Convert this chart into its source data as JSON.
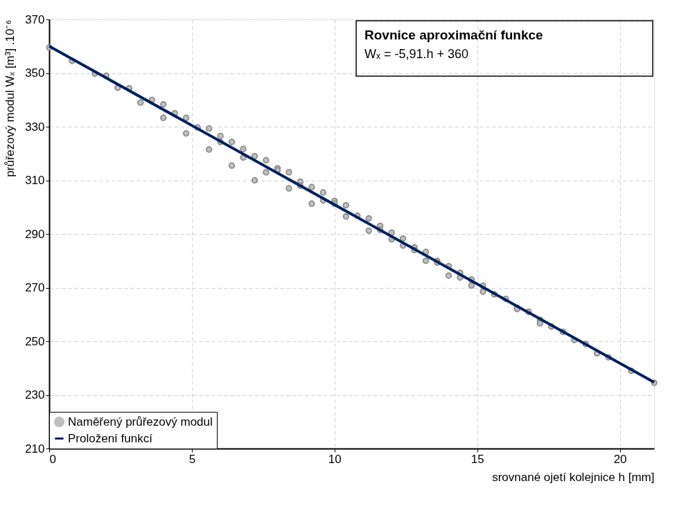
{
  "chart_data": {
    "type": "scatter",
    "xlabel": "srovnané ojetí kolejnice h [mm]",
    "ylabel": "průřezový modul Wₓ [m³] .10⁻⁶",
    "annotations": [
      "Rovnice aproximační funkce",
      "Wₓ = -5,91.h + 360"
    ],
    "xlim": [
      0,
      21.2
    ],
    "xticks": [
      0,
      5,
      10,
      15,
      20
    ],
    "ylim": [
      210,
      370
    ],
    "yticks": [
      210,
      230,
      250,
      270,
      290,
      310,
      330,
      350,
      370
    ],
    "grid": true,
    "legend": "bottom left",
    "marker": "circle",
    "series": [
      {
        "name": "Naměřený průřezový modul",
        "color": "#c0c0c0",
        "x": [
          0,
          0.8,
          1.6,
          2.0,
          2.4,
          2.8,
          3.2,
          3.6,
          4.0,
          4.0,
          4.4,
          4.8,
          4.8,
          5.2,
          5.6,
          5.6,
          6.0,
          6.0,
          6.4,
          6.4,
          6.8,
          6.8,
          7.2,
          7.2,
          7.6,
          7.6,
          8.0,
          8.0,
          8.4,
          8.4,
          8.8,
          8.8,
          9.2,
          9.2,
          9.6,
          9.6,
          10.0,
          10.0,
          10.4,
          10.4,
          10.8,
          11.2,
          11.2,
          11.6,
          11.6,
          12.0,
          12.0,
          12.4,
          12.4,
          12.8,
          12.8,
          13.2,
          13.2,
          13.6,
          13.6,
          14.0,
          14.0,
          14.4,
          14.4,
          14.8,
          14.8,
          15.2,
          15.2,
          15.6,
          16.0,
          16.4,
          16.4,
          16.8,
          17.2,
          17.2,
          17.6,
          18.0,
          18.4,
          18.8,
          19.2,
          19.6,
          20.4,
          21.2
        ],
        "values": [
          359.5,
          354.5,
          349.8,
          349,
          344.5,
          344.3,
          339,
          340,
          338.3,
          333.3,
          335,
          333.3,
          327.5,
          329.7,
          329.3,
          321.5,
          326.5,
          324.3,
          324.3,
          315.5,
          321.7,
          318.5,
          319,
          310,
          317.5,
          313,
          314.5,
          313.7,
          313,
          307,
          309.5,
          308,
          307.5,
          301.3,
          305.5,
          302.5,
          302.3,
          301.3,
          300.7,
          296.5,
          296.8,
          295.8,
          291.2,
          293,
          291.5,
          290.5,
          288,
          288.3,
          285.7,
          285,
          284,
          283.3,
          280,
          280,
          279.3,
          278,
          274.5,
          275.5,
          273.8,
          273,
          270.8,
          270.7,
          268.5,
          267.5,
          265.8,
          262.5,
          262,
          261,
          258,
          256.7,
          255.5,
          253.5,
          250.5,
          249,
          245.5,
          244,
          239,
          234.5
        ]
      },
      {
        "name": "Proložení funkcí",
        "type": "line",
        "color": "#002060",
        "line_style": "solid",
        "marker": "none",
        "x": [
          0,
          21.2
        ],
        "values": [
          360,
          234.7
        ]
      }
    ]
  }
}
